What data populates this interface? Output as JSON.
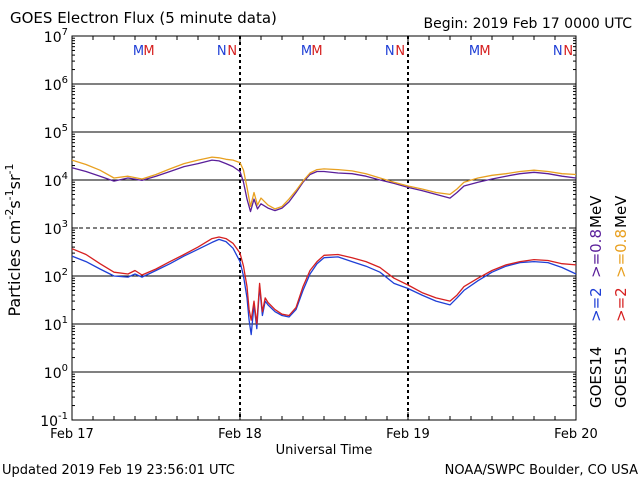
{
  "header": {
    "title": "GOES Electron Flux (5 minute data)",
    "begin": "Begin: 2019 Feb 17 0000 UTC"
  },
  "footer": {
    "updated": "Updated 2019 Feb 19 23:56:01 UTC",
    "credit": "NOAA/SWPC Boulder, CO USA"
  },
  "chart_data": {
    "type": "line",
    "title": "GOES Electron Flux (5 minute data)",
    "xlabel": "Universal Time",
    "ylabel_text": "Particles cm",
    "ylabel_units": [
      {
        "base": "Particles cm",
        "sup": "-2"
      },
      {
        "base": "s",
        "sup": "-1"
      },
      {
        "base": "sr",
        "sup": "-1"
      }
    ],
    "yscale": "log",
    "ylim_exp": [
      -1,
      7
    ],
    "ylim": [
      0.1,
      10000000
    ],
    "xlim_hours": [
      0,
      72
    ],
    "x_ticks": [
      {
        "h": 0,
        "label": "Feb 17"
      },
      {
        "h": 24,
        "label": "Feb 18"
      },
      {
        "h": 48,
        "label": "Feb 19"
      },
      {
        "h": 72,
        "label": "Feb 20"
      }
    ],
    "y_ticks": [
      {
        "exp": -1,
        "base": "10",
        "sup": "-1"
      },
      {
        "exp": 0,
        "base": "10",
        "sup": "0"
      },
      {
        "exp": 1,
        "base": "10",
        "sup": "1"
      },
      {
        "exp": 2,
        "base": "10",
        "sup": "2"
      },
      {
        "exp": 3,
        "base": "10",
        "sup": "3"
      },
      {
        "exp": 4,
        "base": "10",
        "sup": "4"
      },
      {
        "exp": 5,
        "base": "10",
        "sup": "5"
      },
      {
        "exp": 6,
        "base": "10",
        "sup": "6"
      },
      {
        "exp": 7,
        "base": "10",
        "sup": "7"
      }
    ],
    "threshold_exp": 3,
    "markers": [
      {
        "h": 9.5,
        "text": "M",
        "color": "#1f3fd6"
      },
      {
        "h": 11.0,
        "text": "M",
        "color": "#d62020"
      },
      {
        "h": 21.4,
        "text": "N",
        "color": "#1f3fd6"
      },
      {
        "h": 22.9,
        "text": "N",
        "color": "#d62020"
      },
      {
        "h": 33.5,
        "text": "M",
        "color": "#1f3fd6"
      },
      {
        "h": 35.0,
        "text": "M",
        "color": "#d62020"
      },
      {
        "h": 45.4,
        "text": "N",
        "color": "#1f3fd6"
      },
      {
        "h": 46.9,
        "text": "N",
        "color": "#d62020"
      },
      {
        "h": 57.5,
        "text": "M",
        "color": "#1f3fd6"
      },
      {
        "h": 59.0,
        "text": "M",
        "color": "#d62020"
      },
      {
        "h": 69.4,
        "text": "N",
        "color": "#1f3fd6"
      },
      {
        "h": 70.9,
        "text": "N",
        "color": "#d62020"
      }
    ],
    "legend": [
      {
        "text": "GOES14",
        "color": "#000000"
      },
      {
        "text": ">=2",
        "color": "#1f3fd6"
      },
      {
        "text": ">=0.8",
        "color": "#5a1f9a"
      },
      {
        "text": "MeV",
        "color": "#000000"
      },
      {
        "text": "GOES15",
        "color": "#000000"
      },
      {
        "text": ">=2",
        "color": "#d62020"
      },
      {
        "text": ">=0.8",
        "color": "#e8a020"
      },
      {
        "text": "MeV",
        "color": "#000000"
      }
    ],
    "series": [
      {
        "name": "GOES14 >=0.8 MeV",
        "color": "#5a1f9a",
        "x": [
          0,
          2,
          4,
          6,
          8,
          10,
          12,
          14,
          16,
          18,
          20,
          21,
          22,
          23,
          24,
          24.5,
          25,
          25.5,
          26,
          26.5,
          27,
          28,
          29,
          30,
          31,
          32,
          33,
          34,
          35,
          36,
          38,
          40,
          42,
          44,
          46,
          48,
          50,
          52,
          54,
          55,
          56,
          58,
          60,
          62,
          64,
          66,
          68,
          70,
          72
        ],
        "y": [
          18000,
          15000,
          12000,
          9500,
          11000,
          9800,
          12000,
          15000,
          19000,
          22000,
          26000,
          25000,
          22000,
          19000,
          15000,
          9000,
          4000,
          2200,
          4000,
          2500,
          3200,
          2600,
          2300,
          2600,
          3500,
          5500,
          9000,
          13000,
          15000,
          15000,
          14000,
          13500,
          12000,
          10000,
          8500,
          7000,
          6000,
          5000,
          4200,
          5500,
          7500,
          9000,
          10500,
          12000,
          13500,
          14500,
          13500,
          12000,
          11000
        ]
      },
      {
        "name": "GOES15 >=0.8 MeV",
        "color": "#e8a020",
        "x": [
          0,
          2,
          4,
          6,
          8,
          10,
          12,
          14,
          16,
          18,
          20,
          21,
          22,
          23,
          24,
          24.5,
          25,
          25.5,
          26,
          26.5,
          27,
          28,
          29,
          30,
          31,
          32,
          33,
          34,
          35,
          36,
          38,
          40,
          42,
          44,
          46,
          48,
          50,
          52,
          54,
          55,
          56,
          58,
          60,
          62,
          64,
          66,
          68,
          70,
          72
        ],
        "y": [
          26000,
          21000,
          16000,
          11000,
          12000,
          10500,
          13000,
          17000,
          22000,
          26000,
          30000,
          29000,
          27000,
          26000,
          23000,
          16000,
          7000,
          2800,
          5500,
          3000,
          4200,
          3000,
          2500,
          2800,
          4000,
          6000,
          9500,
          14000,
          16500,
          17000,
          16500,
          15500,
          13500,
          11000,
          9000,
          7500,
          6500,
          5500,
          5000,
          6500,
          9000,
          11000,
          12500,
          13500,
          15000,
          16000,
          15000,
          13500,
          13000
        ]
      },
      {
        "name": "GOES14 >=2 MeV",
        "color": "#1f3fd6",
        "x": [
          0,
          2,
          4,
          6,
          8,
          9,
          10,
          12,
          14,
          16,
          18,
          20,
          21,
          22,
          23,
          24,
          24.5,
          25,
          25.3,
          25.6,
          26,
          26.4,
          26.8,
          27.2,
          27.6,
          28,
          29,
          30,
          31,
          32,
          33,
          34,
          35,
          36,
          38,
          40,
          42,
          44,
          46,
          48,
          50,
          52,
          54,
          55,
          56,
          58,
          60,
          62,
          64,
          66,
          68,
          70,
          72
        ],
        "y": [
          260,
          200,
          140,
          100,
          95,
          110,
          95,
          130,
          180,
          260,
          360,
          500,
          580,
          520,
          380,
          200,
          100,
          35,
          12,
          6,
          25,
          8,
          60,
          15,
          30,
          25,
          18,
          15,
          14,
          20,
          50,
          110,
          180,
          240,
          250,
          200,
          160,
          120,
          70,
          55,
          40,
          30,
          25,
          35,
          50,
          80,
          120,
          160,
          190,
          200,
          190,
          150,
          110
        ]
      },
      {
        "name": "GOES15 >=2 MeV",
        "color": "#d62020",
        "x": [
          0,
          2,
          4,
          6,
          8,
          9,
          10,
          12,
          14,
          16,
          18,
          20,
          21,
          22,
          23,
          24,
          24.5,
          25,
          25.3,
          25.6,
          26,
          26.4,
          26.8,
          27.2,
          27.6,
          28,
          29,
          30,
          31,
          32,
          33,
          34,
          35,
          36,
          38,
          40,
          42,
          44,
          46,
          48,
          50,
          52,
          54,
          55,
          56,
          58,
          60,
          62,
          64,
          66,
          68,
          70,
          72
        ],
        "y": [
          370,
          280,
          180,
          120,
          110,
          130,
          105,
          140,
          200,
          280,
          400,
          600,
          650,
          600,
          480,
          300,
          160,
          60,
          20,
          12,
          30,
          10,
          70,
          18,
          35,
          28,
          20,
          16,
          15,
          22,
          60,
          130,
          200,
          270,
          280,
          240,
          200,
          150,
          90,
          65,
          45,
          35,
          30,
          40,
          60,
          90,
          130,
          170,
          200,
          220,
          210,
          180,
          170
        ]
      }
    ]
  }
}
